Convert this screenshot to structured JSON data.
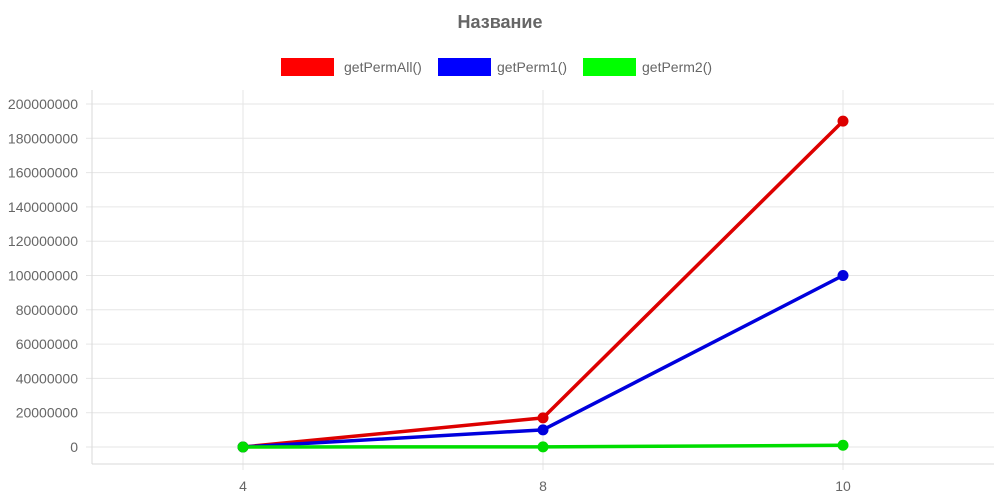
{
  "chart_data": {
    "type": "line",
    "title": "Название",
    "xlabel": "",
    "ylabel": "",
    "x": [
      "4",
      "8",
      "10"
    ],
    "ylim": [
      0,
      200000000
    ],
    "y_ticks": [
      0,
      20000000,
      40000000,
      60000000,
      80000000,
      100000000,
      120000000,
      140000000,
      160000000,
      180000000,
      200000000
    ],
    "grid": true,
    "legend_position": "top",
    "series": [
      {
        "name": "getPermAll()",
        "color": "#ff0000",
        "line_color": "#dd0000",
        "values": [
          24,
          17000000,
          190000000
        ]
      },
      {
        "name": "getPerm1()",
        "color": "#0000ff",
        "line_color": "#0000dd",
        "values": [
          20,
          10000000,
          100000000
        ]
      },
      {
        "name": "getPerm2()",
        "color": "#00ff00",
        "line_color": "#00dd00",
        "values": [
          10,
          100000,
          1000000
        ]
      }
    ]
  }
}
